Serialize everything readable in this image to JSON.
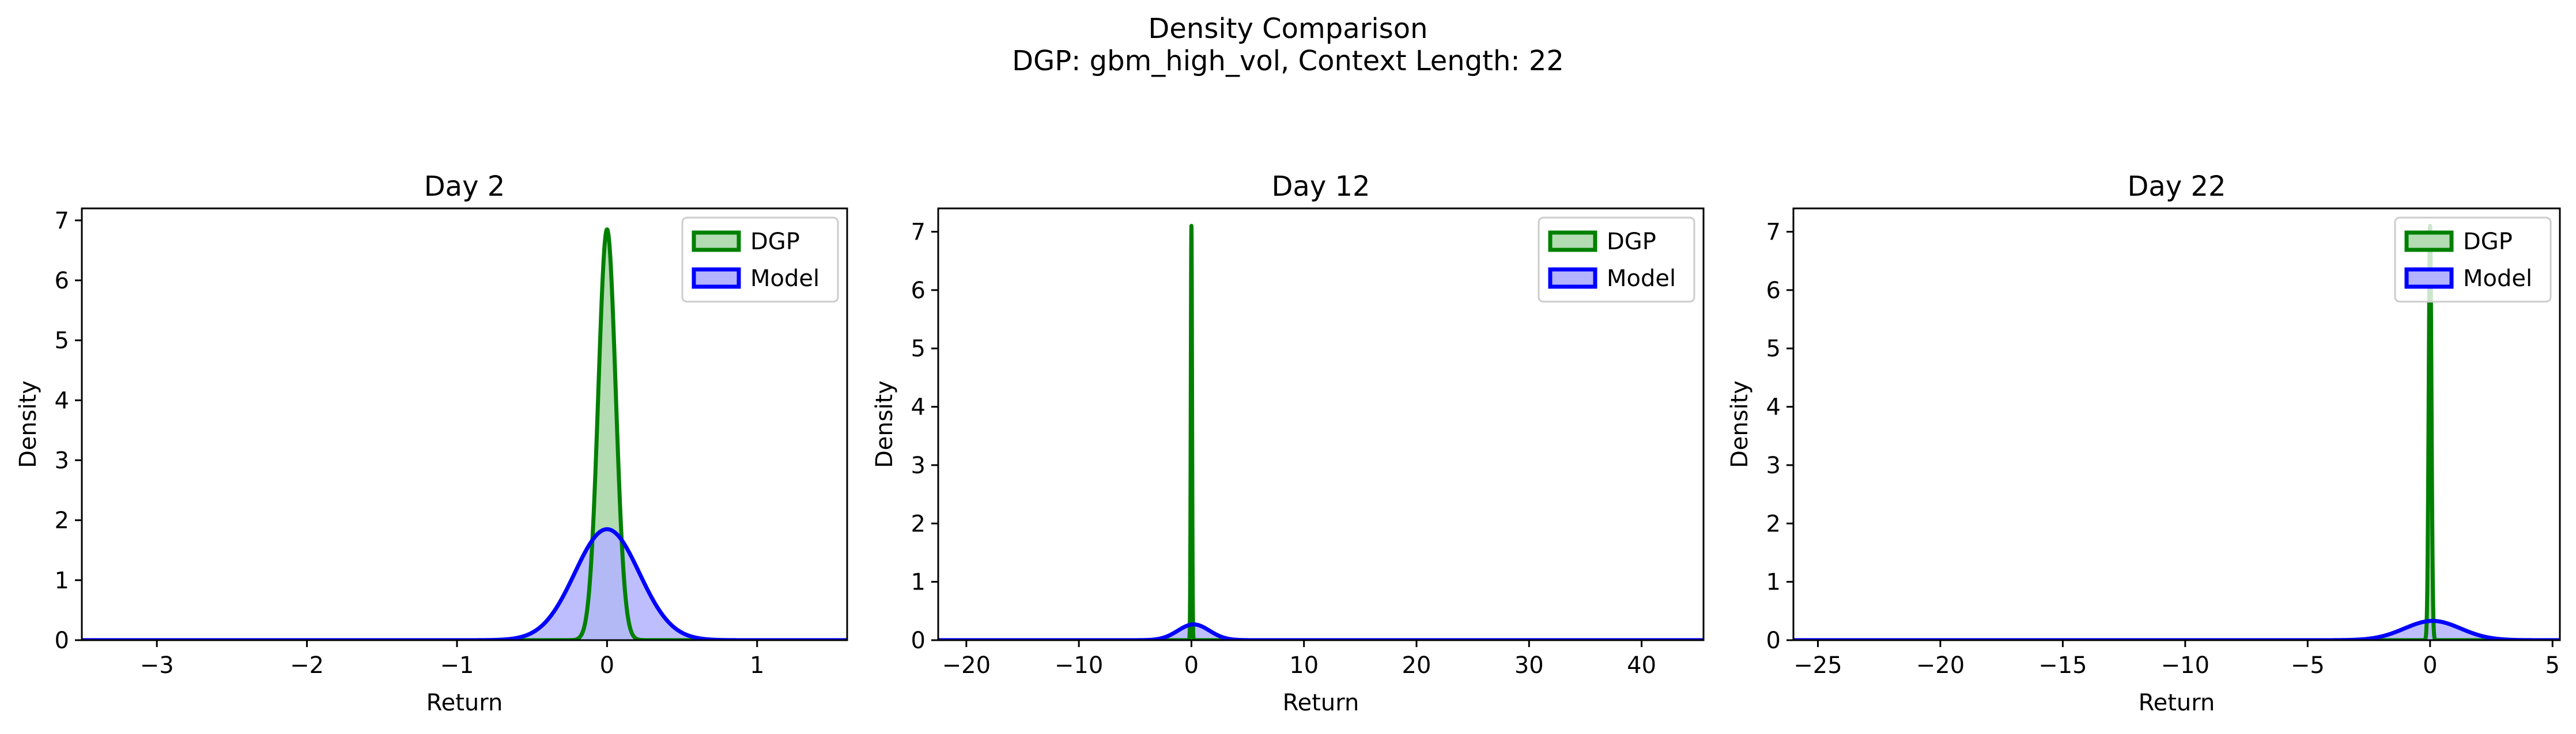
{
  "figure": {
    "title_line_1": "Density Comparison",
    "title_line_2": "DGP: gbm_high_vol, Context Length: 22"
  },
  "colors": {
    "dgp_line": "#008000",
    "dgp_fill": "#b3dcb3",
    "model_line": "#0000ff",
    "model_fill": "#b3b3ff",
    "overlap_fill": "#7f9cc8"
  },
  "chart_data": [
    {
      "type": "area",
      "title": "Day 2",
      "xlabel": "Return",
      "ylabel": "Density",
      "xlim": [
        -3.5,
        1.6
      ],
      "ylim": [
        0,
        7.2
      ],
      "xticks": [
        -3,
        -2,
        -1,
        0,
        1
      ],
      "xtick_labels": [
        "−3",
        "−2",
        "−1",
        "0",
        "1"
      ],
      "yticks": [
        0,
        1,
        2,
        3,
        4,
        5,
        6,
        7
      ],
      "ytick_labels": [
        "0",
        "1",
        "2",
        "3",
        "4",
        "5",
        "6",
        "7"
      ],
      "legend": "upper right",
      "series": [
        {
          "name": "DGP",
          "kind": "density",
          "mean": 0.0,
          "std": 0.058,
          "peak": 6.85
        },
        {
          "name": "Model",
          "kind": "density",
          "mean": 0.0,
          "std": 0.215,
          "peak": 1.85
        }
      ]
    },
    {
      "type": "area",
      "title": "Day 12",
      "xlabel": "Return",
      "ylabel": "Density",
      "xlim": [
        -22.5,
        45.5
      ],
      "ylim": [
        0,
        7.4
      ],
      "xticks": [
        -20,
        -10,
        0,
        10,
        20,
        30,
        40
      ],
      "xtick_labels": [
        "−20",
        "−10",
        "0",
        "10",
        "20",
        "30",
        "40"
      ],
      "yticks": [
        0,
        1,
        2,
        3,
        4,
        5,
        6,
        7
      ],
      "ytick_labels": [
        "0",
        "1",
        "2",
        "3",
        "4",
        "5",
        "6",
        "7"
      ],
      "legend": "upper right",
      "series": [
        {
          "name": "DGP",
          "kind": "density",
          "mean": 0.0,
          "std": 0.056,
          "peak": 7.1
        },
        {
          "name": "Model",
          "kind": "density",
          "mean": 0.2,
          "std": 1.4,
          "peak": 0.27
        }
      ]
    },
    {
      "type": "area",
      "title": "Day 22",
      "xlabel": "Return",
      "ylabel": "Density",
      "xlim": [
        -26,
        5.3
      ],
      "ylim": [
        0,
        7.4
      ],
      "xticks": [
        -25,
        -20,
        -15,
        -10,
        -5,
        0,
        5
      ],
      "xtick_labels": [
        "−25",
        "−20",
        "−15",
        "−10",
        "−5",
        "0",
        "5"
      ],
      "yticks": [
        0,
        1,
        2,
        3,
        4,
        5,
        6,
        7
      ],
      "ytick_labels": [
        "0",
        "1",
        "2",
        "3",
        "4",
        "5",
        "6",
        "7"
      ],
      "legend": "upper right",
      "series": [
        {
          "name": "DGP",
          "kind": "density",
          "mean": 0.0,
          "std": 0.056,
          "peak": 7.1
        },
        {
          "name": "Model",
          "kind": "density",
          "mean": 0.1,
          "std": 1.15,
          "peak": 0.33
        }
      ]
    }
  ]
}
